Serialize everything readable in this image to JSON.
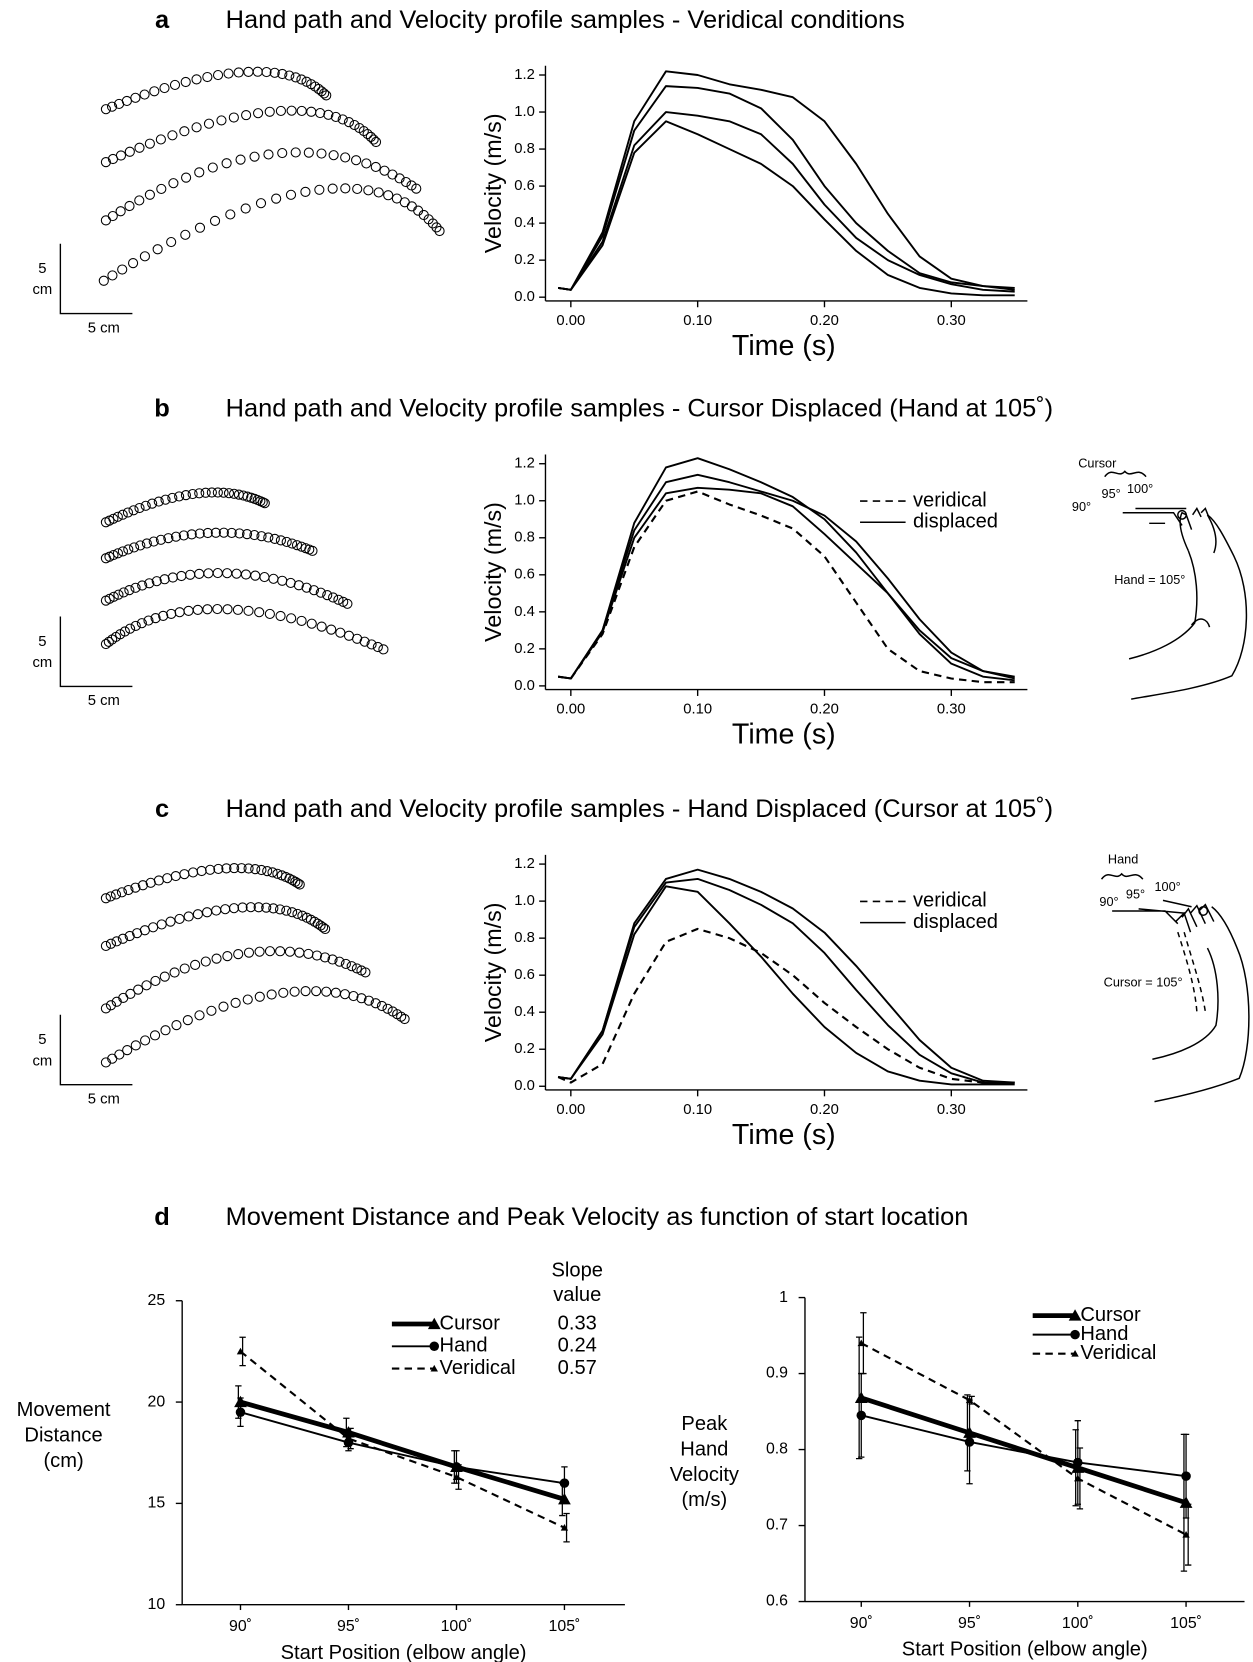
{
  "figure_d": {
    "label": "d",
    "title": "Movement Distance and Peak Velocity as function of start location"
  },
  "hand_paths": [
    {
      "scale_y": [
        "5",
        "cm"
      ],
      "scale_x": "5 cm"
    },
    {
      "scale_y": [
        "5",
        "cm"
      ],
      "scale_x": "5 cm"
    },
    {
      "scale_y": [
        "5",
        "cm"
      ],
      "scale_x": "5 cm"
    }
  ],
  "arm_b": {
    "bracket": "Cursor",
    "angles": [
      "90°",
      "95°",
      "100°"
    ],
    "label": "Hand = 105°"
  },
  "arm_c": {
    "bracket": "Hand",
    "angles": [
      "90°",
      "95°",
      "100°"
    ],
    "label": "Cursor = 105°"
  },
  "chart_data": [
    {
      "type": "line",
      "panel": "a",
      "title": "Hand path and Velocity profile samples - Veridical conditions",
      "xlabel": "Time (s)",
      "ylabel": "Velocity (m/s)",
      "xlim": [
        -0.02,
        0.36
      ],
      "ylim": [
        -0.02,
        1.25
      ],
      "xticks": [
        {
          "value": 0,
          "label": "0.00"
        },
        {
          "value": 0.1,
          "label": "0.10"
        },
        {
          "value": 0.2,
          "label": "0.20"
        },
        {
          "value": 0.3,
          "label": "0.30"
        }
      ],
      "yticks": [
        {
          "value": 0,
          "label": "0.0"
        },
        {
          "value": 0.2,
          "label": "0.2"
        },
        {
          "value": 0.4,
          "label": "0.4"
        },
        {
          "value": 0.6,
          "label": "0.6"
        },
        {
          "value": 0.8,
          "label": "0.8"
        },
        {
          "value": 1,
          "label": "1.0"
        },
        {
          "value": 1.2,
          "label": "1.2"
        }
      ],
      "x": [
        -0.01,
        0,
        0.025,
        0.05,
        0.075,
        0.1,
        0.125,
        0.15,
        0.175,
        0.2,
        0.225,
        0.25,
        0.275,
        0.3,
        0.325,
        0.35
      ],
      "series": [
        {
          "color": "#000000",
          "style": "solid",
          "values": [
            0.05,
            0.04,
            0.35,
            0.95,
            1.22,
            1.2,
            1.15,
            1.12,
            1.08,
            0.95,
            0.72,
            0.45,
            0.22,
            0.1,
            0.06,
            0.05
          ]
        },
        {
          "color": "#000000",
          "style": "solid",
          "values": [
            0.05,
            0.04,
            0.33,
            0.9,
            1.14,
            1.13,
            1.1,
            1.02,
            0.85,
            0.6,
            0.4,
            0.25,
            0.13,
            0.08,
            0.06,
            0.04
          ]
        },
        {
          "color": "#000000",
          "style": "solid",
          "values": [
            0.05,
            0.04,
            0.3,
            0.82,
            1.0,
            0.98,
            0.95,
            0.88,
            0.72,
            0.5,
            0.32,
            0.2,
            0.12,
            0.07,
            0.04,
            0.03
          ]
        },
        {
          "color": "#000000",
          "style": "solid",
          "values": [
            0.05,
            0.04,
            0.28,
            0.78,
            0.95,
            0.88,
            0.8,
            0.72,
            0.6,
            0.42,
            0.25,
            0.12,
            0.05,
            0.02,
            0.01,
            0.01
          ]
        }
      ]
    },
    {
      "type": "line",
      "panel": "b",
      "title": "Hand path and Velocity profile samples - Cursor Displaced (Hand at 105˚)",
      "xlabel": "Time (s)",
      "ylabel": "Velocity (m/s)",
      "xlim": [
        -0.02,
        0.36
      ],
      "ylim": [
        -0.02,
        1.25
      ],
      "xticks": [
        {
          "value": 0,
          "label": "0.00"
        },
        {
          "value": 0.1,
          "label": "0.10"
        },
        {
          "value": 0.2,
          "label": "0.20"
        },
        {
          "value": 0.3,
          "label": "0.30"
        }
      ],
      "yticks": [
        {
          "value": 0,
          "label": "0.0"
        },
        {
          "value": 0.2,
          "label": "0.2"
        },
        {
          "value": 0.4,
          "label": "0.4"
        },
        {
          "value": 0.6,
          "label": "0.6"
        },
        {
          "value": 0.8,
          "label": "0.8"
        },
        {
          "value": 1,
          "label": "1.0"
        },
        {
          "value": 1.2,
          "label": "1.2"
        }
      ],
      "legend": [
        {
          "name": "veridical",
          "style": "dashed"
        },
        {
          "name": "displaced",
          "style": "solid"
        }
      ],
      "x": [
        -0.01,
        0,
        0.025,
        0.05,
        0.075,
        0.1,
        0.125,
        0.15,
        0.175,
        0.2,
        0.225,
        0.25,
        0.275,
        0.3,
        0.325,
        0.35
      ],
      "series": [
        {
          "color": "#000000",
          "style": "dashed",
          "values": [
            0.05,
            0.04,
            0.28,
            0.75,
            1.0,
            1.05,
            0.98,
            0.92,
            0.85,
            0.7,
            0.45,
            0.2,
            0.08,
            0.04,
            0.02,
            0.02
          ]
        },
        {
          "color": "#000000",
          "style": "solid",
          "values": [
            0.05,
            0.04,
            0.3,
            0.88,
            1.18,
            1.23,
            1.17,
            1.1,
            1.02,
            0.9,
            0.72,
            0.5,
            0.3,
            0.15,
            0.08,
            0.05
          ]
        },
        {
          "color": "#000000",
          "style": "solid",
          "values": [
            0.05,
            0.04,
            0.3,
            0.84,
            1.1,
            1.14,
            1.1,
            1.05,
            1.0,
            0.92,
            0.78,
            0.58,
            0.36,
            0.18,
            0.08,
            0.04
          ]
        },
        {
          "color": "#000000",
          "style": "solid",
          "values": [
            0.05,
            0.04,
            0.29,
            0.8,
            1.04,
            1.07,
            1.06,
            1.04,
            0.97,
            0.82,
            0.66,
            0.5,
            0.28,
            0.12,
            0.05,
            0.03
          ]
        }
      ]
    },
    {
      "type": "line",
      "panel": "c",
      "title": "Hand path and Velocity profile samples - Hand Displaced (Cursor at 105˚)",
      "xlabel": "Time (s)",
      "ylabel": "Velocity (m/s)",
      "xlim": [
        -0.02,
        0.36
      ],
      "ylim": [
        -0.02,
        1.25
      ],
      "xticks": [
        {
          "value": 0,
          "label": "0.00"
        },
        {
          "value": 0.1,
          "label": "0.10"
        },
        {
          "value": 0.2,
          "label": "0.20"
        },
        {
          "value": 0.3,
          "label": "0.30"
        }
      ],
      "yticks": [
        {
          "value": 0,
          "label": "0.0"
        },
        {
          "value": 0.2,
          "label": "0.2"
        },
        {
          "value": 0.4,
          "label": "0.4"
        },
        {
          "value": 0.6,
          "label": "0.6"
        },
        {
          "value": 0.8,
          "label": "0.8"
        },
        {
          "value": 1,
          "label": "1.0"
        },
        {
          "value": 1.2,
          "label": "1.2"
        }
      ],
      "legend": [
        {
          "name": "veridical",
          "style": "dashed"
        },
        {
          "name": "displaced",
          "style": "solid"
        }
      ],
      "x": [
        -0.01,
        0,
        0.025,
        0.05,
        0.075,
        0.1,
        0.125,
        0.15,
        0.175,
        0.2,
        0.225,
        0.25,
        0.275,
        0.3,
        0.325,
        0.35
      ],
      "series": [
        {
          "color": "#000000",
          "style": "dashed",
          "values": [
            0.05,
            0.02,
            0.12,
            0.5,
            0.78,
            0.85,
            0.8,
            0.72,
            0.6,
            0.45,
            0.32,
            0.2,
            0.1,
            0.04,
            0.02,
            0.02
          ]
        },
        {
          "color": "#000000",
          "style": "solid",
          "values": [
            0.05,
            0.04,
            0.3,
            0.88,
            1.12,
            1.17,
            1.12,
            1.05,
            0.96,
            0.83,
            0.65,
            0.45,
            0.25,
            0.1,
            0.03,
            0.02
          ]
        },
        {
          "color": "#000000",
          "style": "solid",
          "values": [
            0.05,
            0.04,
            0.3,
            0.86,
            1.1,
            1.12,
            1.06,
            0.98,
            0.88,
            0.72,
            0.52,
            0.33,
            0.17,
            0.07,
            0.02,
            0.02
          ]
        },
        {
          "color": "#000000",
          "style": "solid",
          "values": [
            0.05,
            0.04,
            0.28,
            0.82,
            1.08,
            1.05,
            0.88,
            0.7,
            0.5,
            0.32,
            0.18,
            0.08,
            0.03,
            0.01,
            0.01,
            0.01
          ]
        }
      ]
    },
    {
      "type": "errorline",
      "xlabel": "Start Position (elbow angle)",
      "ylabel": [
        "Movement",
        "Distance",
        "(cm)"
      ],
      "slope_header": [
        "Slope",
        "value"
      ],
      "xlim": [
        87.3,
        107.8
      ],
      "ylim": [
        10,
        25
      ],
      "xticks": [
        {
          "value": 90,
          "label": "90˚"
        },
        {
          "value": 95,
          "label": "95˚"
        },
        {
          "value": 100,
          "label": "100˚"
        },
        {
          "value": 105,
          "label": "105˚"
        }
      ],
      "yticks": [
        10,
        15,
        20,
        25
      ],
      "x": [
        90,
        95,
        100,
        105
      ],
      "series": [
        {
          "name": "Cursor",
          "color": "#000000",
          "style": "thick",
          "marker": "triangle",
          "slope": 0.33,
          "values": [
            20.0,
            18.5,
            16.8,
            15.2
          ],
          "errors": [
            0.8,
            0.7,
            0.8,
            0.8
          ]
        },
        {
          "name": "Hand",
          "color": "#000000",
          "style": "solid",
          "marker": "circle",
          "slope": 0.24,
          "values": [
            19.5,
            18.0,
            16.8,
            16.0
          ],
          "errors": [
            0.7,
            0.4,
            0.8,
            0.8
          ]
        },
        {
          "name": "Veridical",
          "color": "#000000",
          "style": "dashed",
          "marker": "small-triangle",
          "slope": 0.57,
          "values": [
            22.5,
            18.2,
            16.3,
            13.8
          ],
          "errors": [
            0.7,
            0.5,
            0.6,
            0.7
          ]
        }
      ]
    },
    {
      "type": "errorline",
      "xlabel": "Start Position (elbow angle)",
      "ylabel": [
        "Peak",
        "Hand",
        "Velocity",
        "(m/s)"
      ],
      "xlim": [
        87.4,
        107.7
      ],
      "ylim": [
        0.6,
        1.0
      ],
      "xticks": [
        {
          "value": 90,
          "label": "90˚"
        },
        {
          "value": 95,
          "label": "95˚"
        },
        {
          "value": 100,
          "label": "100˚"
        },
        {
          "value": 105,
          "label": "105˚"
        }
      ],
      "yticks": [
        0.6,
        0.7,
        0.8,
        0.9,
        1
      ],
      "x": [
        90,
        95,
        100,
        105
      ],
      "series": [
        {
          "name": "Cursor",
          "color": "#000000",
          "style": "thick",
          "marker": "triangle",
          "values": [
            0.868,
            0.822,
            0.776,
            0.73
          ],
          "errors": [
            0.08,
            0.05,
            0.05,
            0.09
          ]
        },
        {
          "name": "Hand",
          "color": "#000000",
          "style": "solid",
          "marker": "circle",
          "values": [
            0.845,
            0.81,
            0.783,
            0.765
          ],
          "errors": [
            0.055,
            0.055,
            0.055,
            0.055
          ]
        },
        {
          "name": "Veridical",
          "color": "#000000",
          "style": "dashed",
          "marker": "small-triangle",
          "values": [
            0.94,
            0.865,
            0.762,
            0.688
          ],
          "errors": [
            0.04,
            0.005,
            0.04,
            0.04
          ]
        }
      ]
    }
  ]
}
